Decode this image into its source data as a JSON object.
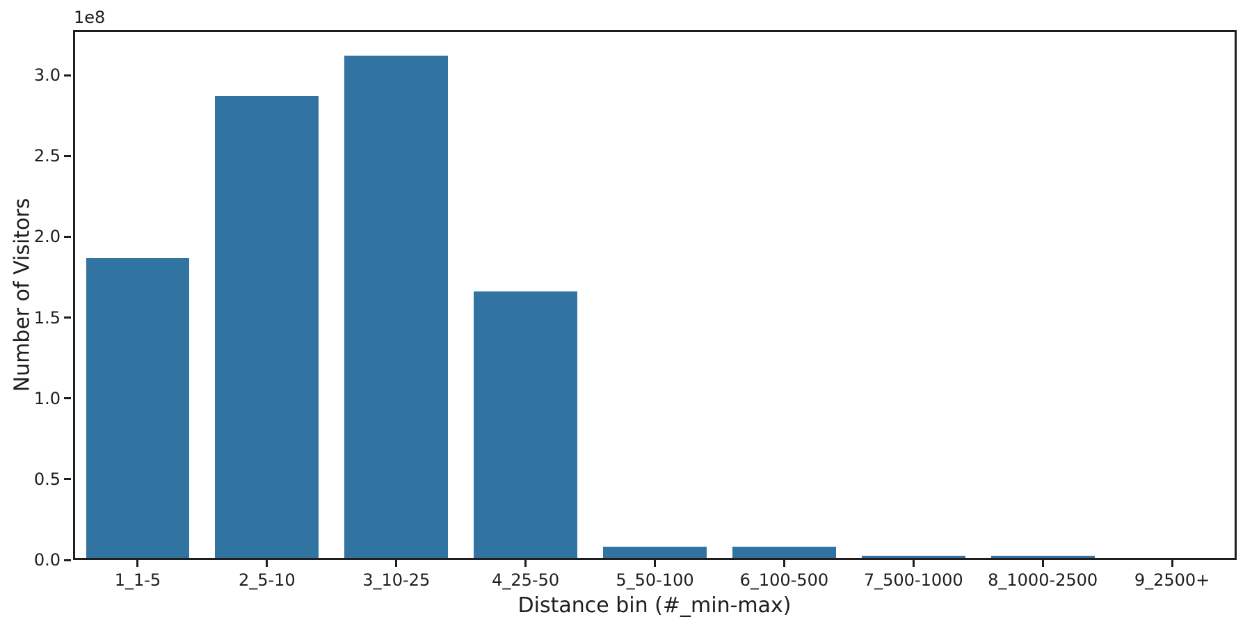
{
  "figure": {
    "background": "#ffffff",
    "axis_color": "#1e1e1e"
  },
  "chart_data": {
    "type": "bar",
    "xlabel": "Distance bin (#_min-max)",
    "ylabel": "Number of Visitors",
    "offset_text": "1e8",
    "categories": [
      "1_1-5",
      "2_5-10",
      "3_10-25",
      "4_25-50",
      "5_50-100",
      "6_100-500",
      "7_500-1000",
      "8_1000-2500",
      "9_2500+"
    ],
    "values": [
      187000000,
      287000000,
      312000000,
      166000000,
      8000000,
      8000000,
      2500000,
      2800000,
      0
    ],
    "bar_color": "#3274a1",
    "bar_width_fraction": 0.8,
    "ylim": [
      0,
      328000000
    ],
    "yticks": [
      0,
      50000000,
      100000000,
      150000000,
      200000000,
      250000000,
      300000000
    ],
    "ytick_labels": [
      "0.0",
      "0.5",
      "1.0",
      "1.5",
      "2.0",
      "2.5",
      "3.0"
    ],
    "grid": false,
    "legend": null
  }
}
